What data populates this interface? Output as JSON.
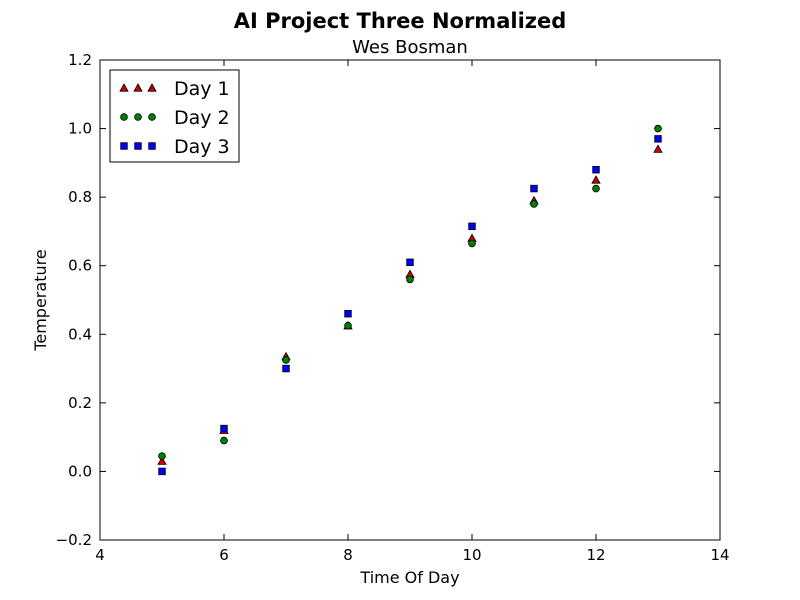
{
  "chart_data": {
    "type": "scatter",
    "title": "AI Project Three Normalized",
    "subtitle": "Wes Bosman",
    "xlabel": "Time Of Day",
    "ylabel": "Temperature",
    "xlim": [
      4,
      14
    ],
    "ylim": [
      -0.2,
      1.2
    ],
    "xticks": [
      "4",
      "6",
      "8",
      "10",
      "12",
      "14"
    ],
    "yticks": [
      "−0.2",
      "0.0",
      "0.2",
      "0.4",
      "0.6",
      "0.8",
      "1.0",
      "1.2"
    ],
    "grid": false,
    "legend_position": "top-left",
    "series": [
      {
        "name": "Day 1",
        "marker": "triangle",
        "color": "#cc0000",
        "x": [
          5,
          6,
          7,
          8,
          9,
          10,
          11,
          12,
          13
        ],
        "y": [
          0.03,
          0.12,
          0.335,
          0.425,
          0.575,
          0.68,
          0.79,
          0.85,
          0.94
        ]
      },
      {
        "name": "Day 2",
        "marker": "circle",
        "color": "#008000",
        "x": [
          5,
          6,
          7,
          8,
          9,
          10,
          11,
          12,
          13
        ],
        "y": [
          0.045,
          0.09,
          0.325,
          0.425,
          0.56,
          0.665,
          0.78,
          0.825,
          1.0
        ]
      },
      {
        "name": "Day 3",
        "marker": "square",
        "color": "#0000ff",
        "x": [
          5,
          6,
          7,
          8,
          9,
          10,
          11,
          12,
          13
        ],
        "y": [
          0.0,
          0.125,
          0.3,
          0.46,
          0.61,
          0.715,
          0.825,
          0.88,
          0.97
        ]
      }
    ]
  }
}
